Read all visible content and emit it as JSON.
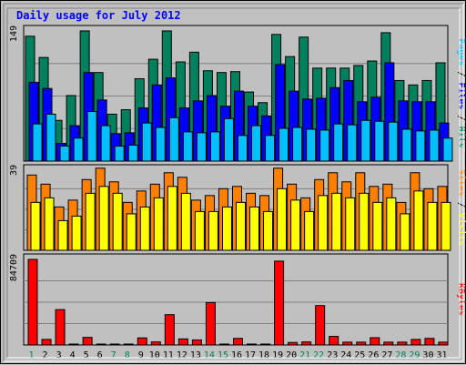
{
  "chart_data": {
    "type": "bar",
    "title": "Daily usage for July 2012",
    "days": [
      "1",
      "2",
      "3",
      "4",
      "5",
      "6",
      "7",
      "8",
      "9",
      "10",
      "11",
      "12",
      "13",
      "14",
      "15",
      "16",
      "17",
      "18",
      "19",
      "20",
      "21",
      "22",
      "23",
      "24",
      "25",
      "26",
      "27",
      "28",
      "29",
      "30",
      "31"
    ],
    "weekend_days": [
      "1",
      "7",
      "8",
      "14",
      "15",
      "21",
      "22",
      "28",
      "29"
    ],
    "colors": {
      "hits": "#00805c",
      "files": "#0000ff",
      "pages": "#00c0ff",
      "visits": "#ffff00",
      "sites": "#ff8000",
      "kbytes": "#ff0000",
      "title": "#0000ff",
      "weekday_label": "#000000",
      "weekend_label": "#00805c"
    },
    "panels": [
      {
        "axis_max_label": "149",
        "legend": [
          {
            "text": "Pages",
            "color": "#00c0ff"
          },
          {
            "text": " / ",
            "color": "#000000"
          },
          {
            "text": "Files",
            "color": "#0000ff"
          },
          {
            "text": " / ",
            "color": "#000000"
          },
          {
            "text": "Hits",
            "color": "#00805c"
          }
        ],
        "series": [
          {
            "name": "Hits",
            "color": "#00805c",
            "values": [
              141,
              117,
              46,
              74,
              147,
              100,
              53,
              58,
              93,
              115,
              147,
              112,
              123,
              102,
              100,
              101,
              78,
              66,
              143,
              118,
              140,
              105,
              105,
              105,
              108,
              113,
              145,
              91,
              86,
              91,
              111
            ]
          },
          {
            "name": "Files",
            "color": "#0000ff",
            "values": [
              89,
              82,
              20,
              40,
              100,
              69,
              31,
              32,
              60,
              86,
              94,
              60,
              68,
              74,
              62,
              79,
              62,
              51,
              109,
              79,
              70,
              71,
              83,
              91,
              67,
              72,
              111,
              68,
              67,
              67,
              43
            ]
          },
          {
            "name": "Pages",
            "color": "#00c0ff",
            "values": [
              42,
              53,
              17,
              26,
              56,
              40,
              17,
              18,
              43,
              38,
              49,
              33,
              32,
              33,
              48,
              29,
              40,
              29,
              37,
              38,
              36,
              35,
              42,
              41,
              46,
              45,
              44,
              36,
              34,
              35,
              26
            ]
          }
        ]
      },
      {
        "axis_max_label": "39",
        "legend": [
          {
            "text": "Sites",
            "color": "#ff8000"
          },
          {
            "text": " / ",
            "color": "#000000"
          },
          {
            "text": "Visits",
            "color": "#ffff00"
          }
        ],
        "series": [
          {
            "name": "Sites",
            "color": "#ff8000",
            "values": [
              33,
              29,
              19,
              22,
              31,
              36,
              30,
              21,
              26,
              29,
              34,
              32,
              22,
              24,
              27,
              28,
              25,
              24,
              36,
              29,
              23,
              31,
              34,
              30,
              34,
              28,
              29,
              21,
              34,
              27,
              28
            ]
          },
          {
            "name": "Visits",
            "color": "#ffff00",
            "values": [
              21,
              23,
              13,
              15,
              25,
              28,
              25,
              16,
              19,
              23,
              28,
              25,
              17,
              17,
              19,
              21,
              19,
              17,
              27,
              22,
              17,
              24,
              25,
              23,
              25,
              21,
              23,
              16,
              26,
              21,
              21
            ]
          }
        ]
      },
      {
        "axis_max_label": "84709",
        "legend": [
          {
            "text": "KBytes",
            "color": "#ff0000"
          }
        ],
        "series": [
          {
            "name": "KBytes",
            "color": "#ff0000",
            "values": [
              84709,
              5500,
              35000,
              800,
              7500,
              800,
              800,
              800,
              7000,
              3000,
              30000,
              6000,
              5000,
              42000,
              800,
              6500,
              800,
              800,
              83000,
              2500,
              3000,
              39000,
              8500,
              2800,
              2800,
              7200,
              2800,
              2800,
              5500,
              6500,
              2800
            ]
          }
        ]
      }
    ]
  }
}
